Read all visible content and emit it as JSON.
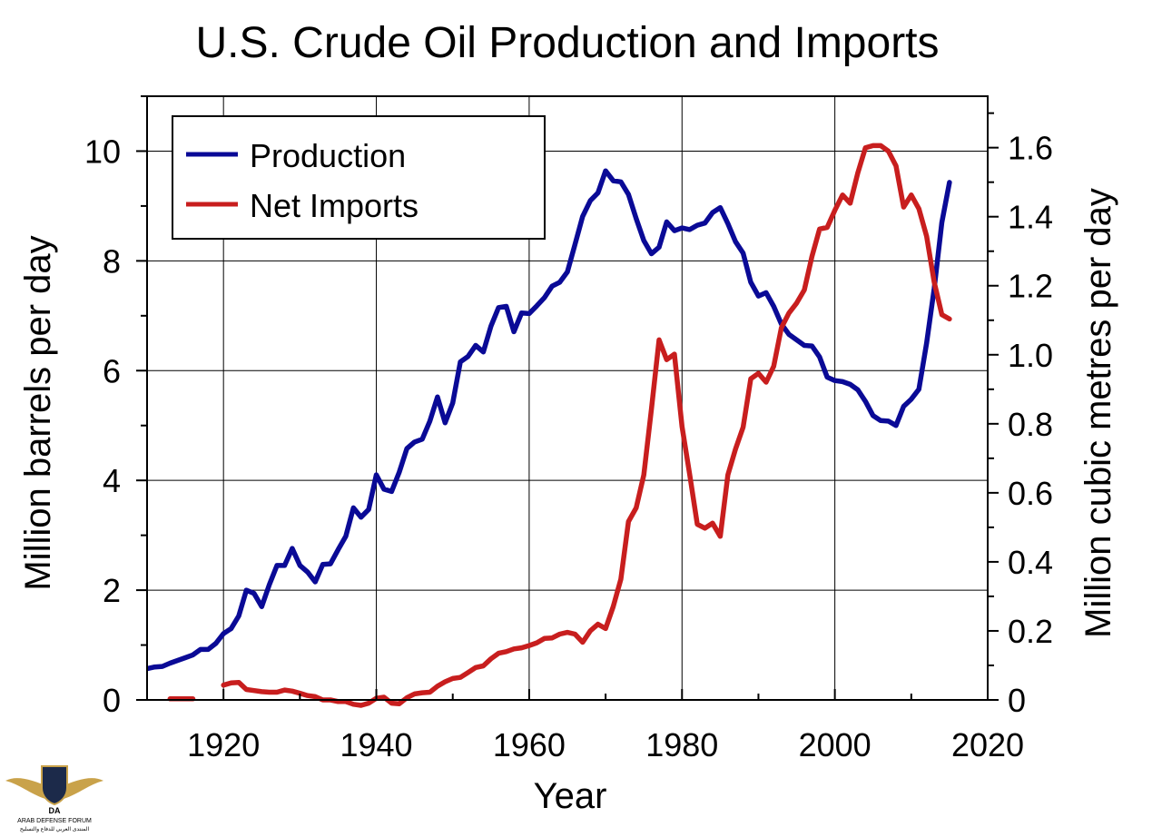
{
  "chart_data": {
    "type": "line",
    "title": "U.S. Crude Oil Production and Imports",
    "xlabel": "Year",
    "ylabel": "Million barrels per day",
    "ylabel_right": "Million cubic metres per day",
    "xlim": [
      1910,
      2020
    ],
    "ylim": [
      0,
      11
    ],
    "ylim_right": [
      0,
      1.749
    ],
    "x_ticks": [
      "1920",
      "1940",
      "1960",
      "1980",
      "2000",
      "2020"
    ],
    "y_ticks": [
      "0",
      "2",
      "4",
      "6",
      "8",
      "10"
    ],
    "y_ticks_right": [
      "0",
      "0.2",
      "0.4",
      "0.6",
      "0.8",
      "1.0",
      "1.2",
      "1.4",
      "1.6"
    ],
    "grid": true,
    "legend_position": "top-left",
    "series": [
      {
        "name": "Production",
        "color": "#0a0a96",
        "x": [
          1910,
          1911,
          1912,
          1913,
          1914,
          1915,
          1916,
          1917,
          1918,
          1919,
          1920,
          1921,
          1922,
          1923,
          1924,
          1925,
          1926,
          1927,
          1928,
          1929,
          1930,
          1931,
          1932,
          1933,
          1934,
          1935,
          1936,
          1937,
          1938,
          1939,
          1940,
          1941,
          1942,
          1943,
          1944,
          1945,
          1946,
          1947,
          1948,
          1949,
          1950,
          1951,
          1952,
          1953,
          1954,
          1955,
          1956,
          1957,
          1958,
          1959,
          1960,
          1961,
          1962,
          1963,
          1964,
          1965,
          1966,
          1967,
          1968,
          1969,
          1970,
          1971,
          1972,
          1973,
          1974,
          1975,
          1976,
          1977,
          1978,
          1979,
          1980,
          1981,
          1982,
          1983,
          1984,
          1985,
          1986,
          1987,
          1988,
          1989,
          1990,
          1991,
          1992,
          1993,
          1994,
          1995,
          1996,
          1997,
          1998,
          1999,
          2000,
          2001,
          2002,
          2003,
          2004,
          2005,
          2006,
          2007,
          2008,
          2009,
          2010,
          2011,
          2012,
          2013,
          2014,
          2015
        ],
        "values": [
          0.57,
          0.6,
          0.61,
          0.67,
          0.72,
          0.77,
          0.82,
          0.92,
          0.92,
          1.03,
          1.21,
          1.3,
          1.53,
          2.0,
          1.94,
          1.7,
          2.1,
          2.45,
          2.45,
          2.76,
          2.45,
          2.33,
          2.15,
          2.47,
          2.48,
          2.74,
          2.98,
          3.5,
          3.33,
          3.47,
          4.1,
          3.84,
          3.8,
          4.15,
          4.58,
          4.7,
          4.75,
          5.08,
          5.52,
          5.05,
          5.41,
          6.16,
          6.26,
          6.46,
          6.34,
          6.81,
          7.15,
          7.17,
          6.71,
          7.05,
          7.04,
          7.18,
          7.33,
          7.54,
          7.61,
          7.8,
          8.3,
          8.81,
          9.1,
          9.24,
          9.64,
          9.46,
          9.44,
          9.21,
          8.77,
          8.37,
          8.13,
          8.25,
          8.71,
          8.55,
          8.6,
          8.57,
          8.65,
          8.69,
          8.88,
          8.97,
          8.68,
          8.35,
          8.14,
          7.61,
          7.36,
          7.42,
          7.17,
          6.85,
          6.66,
          6.56,
          6.46,
          6.45,
          6.25,
          5.88,
          5.82,
          5.8,
          5.75,
          5.65,
          5.44,
          5.18,
          5.09,
          5.08,
          5.0,
          5.35,
          5.48,
          5.66,
          6.5,
          7.5,
          8.7,
          9.43
        ]
      },
      {
        "name": "Net Imports",
        "color": "#c81e1e",
        "segments": [
          {
            "x": [
              1913,
              1914,
              1915,
              1916
            ],
            "values": [
              0.02,
              0.02,
              0.02,
              0.02
            ]
          },
          {
            "x": [
              1920,
              1921,
              1922,
              1923,
              1924,
              1925,
              1926,
              1927,
              1928,
              1929,
              1930,
              1931,
              1932,
              1933,
              1934,
              1935,
              1936,
              1937,
              1938,
              1939,
              1940,
              1941,
              1942,
              1943,
              1944,
              1945,
              1946,
              1947,
              1948,
              1949,
              1950,
              1951,
              1952,
              1953,
              1954,
              1955,
              1956,
              1957,
              1958,
              1959,
              1960,
              1961,
              1962,
              1963,
              1964,
              1965,
              1966,
              1967,
              1968,
              1969,
              1970,
              1971,
              1972,
              1973,
              1974,
              1975,
              1976,
              1977,
              1978,
              1979,
              1980,
              1981,
              1982,
              1983,
              1984,
              1985,
              1986,
              1987,
              1988,
              1989,
              1990,
              1991,
              1992,
              1993,
              1994,
              1995,
              1996,
              1997,
              1998,
              1999,
              2000,
              2001,
              2002,
              2003,
              2004,
              2005,
              2006,
              2007,
              2008,
              2009,
              2010,
              2011,
              2012,
              2013,
              2014,
              2015
            ],
            "values": [
              0.27,
              0.31,
              0.32,
              0.19,
              0.17,
              0.15,
              0.14,
              0.14,
              0.18,
              0.16,
              0.12,
              0.08,
              0.06,
              0.0,
              0.0,
              -0.03,
              -0.03,
              -0.08,
              -0.1,
              -0.06,
              0.03,
              0.05,
              -0.06,
              -0.07,
              0.04,
              0.11,
              0.13,
              0.14,
              0.25,
              0.33,
              0.39,
              0.41,
              0.5,
              0.59,
              0.62,
              0.75,
              0.85,
              0.88,
              0.93,
              0.95,
              0.99,
              1.04,
              1.12,
              1.13,
              1.2,
              1.23,
              1.2,
              1.05,
              1.26,
              1.38,
              1.3,
              1.7,
              2.2,
              3.25,
              3.5,
              4.1,
              5.3,
              6.56,
              6.2,
              6.3,
              4.98,
              4.11,
              3.2,
              3.13,
              3.22,
              2.98,
              4.1,
              4.57,
              4.97,
              5.85,
              5.95,
              5.79,
              6.08,
              6.78,
              7.05,
              7.23,
              7.47,
              8.08,
              8.58,
              8.61,
              8.92,
              9.2,
              9.05,
              9.6,
              10.06,
              10.1,
              10.1,
              10.0,
              9.73,
              8.98,
              9.2,
              8.95,
              8.45,
              7.61,
              7.02,
              6.94
            ]
          }
        ]
      }
    ]
  },
  "watermark": {
    "line1": "ARAB DEFENSE FORUM",
    "line2": "المنتدى العربي للدفاع والتسليح",
    "badge": "DA"
  }
}
